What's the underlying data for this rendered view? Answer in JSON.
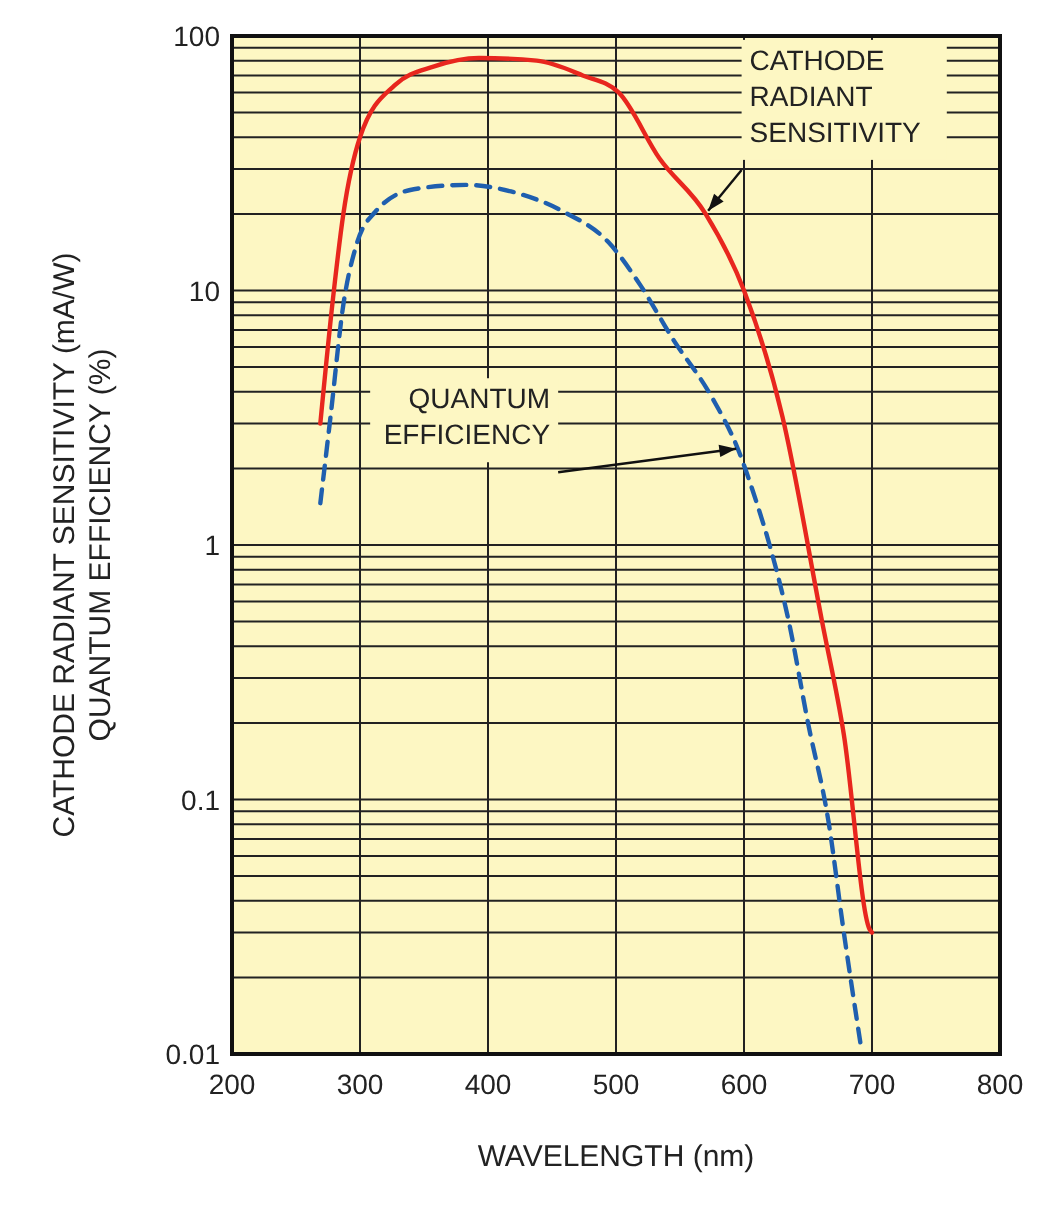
{
  "chart_data": {
    "type": "line",
    "xlabel": "WAVELENGTH (nm)",
    "ylabel": "CATHODE RADIANT SENSITIVITY (mA/W)\nQUANTUM EFFICIENCY (%)",
    "log": "y",
    "grid": true,
    "marker": "none",
    "xlim": [
      200,
      800
    ],
    "xticks": [
      200,
      300,
      400,
      500,
      600,
      700,
      800
    ],
    "ylim": [
      0.01,
      100
    ],
    "yticks": [
      {
        "value": 0.01,
        "label": "0.01"
      },
      {
        "value": 0.02,
        "label": null
      },
      {
        "value": 0.03,
        "label": null
      },
      {
        "value": 0.04,
        "label": null
      },
      {
        "value": 0.05,
        "label": null
      },
      {
        "value": 0.06,
        "label": null
      },
      {
        "value": 0.07,
        "label": null
      },
      {
        "value": 0.08,
        "label": null
      },
      {
        "value": 0.09,
        "label": null
      },
      {
        "value": 0.1,
        "label": "0.1"
      },
      {
        "value": 0.2,
        "label": null
      },
      {
        "value": 0.3,
        "label": null
      },
      {
        "value": 0.4,
        "label": null
      },
      {
        "value": 0.5,
        "label": null
      },
      {
        "value": 0.6,
        "label": null
      },
      {
        "value": 0.7,
        "label": null
      },
      {
        "value": 0.8,
        "label": null
      },
      {
        "value": 0.9,
        "label": null
      },
      {
        "value": 1,
        "label": "1"
      },
      {
        "value": 2,
        "label": null
      },
      {
        "value": 3,
        "label": null
      },
      {
        "value": 4,
        "label": null
      },
      {
        "value": 5,
        "label": null
      },
      {
        "value": 6,
        "label": null
      },
      {
        "value": 7,
        "label": null
      },
      {
        "value": 8,
        "label": null
      },
      {
        "value": 9,
        "label": null
      },
      {
        "value": 10,
        "label": "10"
      },
      {
        "value": 20,
        "label": null
      },
      {
        "value": 30,
        "label": null
      },
      {
        "value": 40,
        "label": null
      },
      {
        "value": 50,
        "label": null
      },
      {
        "value": 60,
        "label": null
      },
      {
        "value": 70,
        "label": null
      },
      {
        "value": 80,
        "label": null
      },
      {
        "value": 90,
        "label": null
      },
      {
        "value": 100,
        "label": "100"
      }
    ],
    "series": [
      {
        "color": "#e8261e",
        "line_style": "solid",
        "x": [
          269,
          279,
          287,
          300,
          327,
          358,
          393,
          438,
          474,
          502,
          534,
          570,
          600,
          630,
          661,
          678,
          698,
          700
        ],
        "values": [
          3.0,
          9.4,
          20,
          40,
          64,
          76,
          82,
          80,
          70,
          60,
          33,
          20,
          10,
          3.2,
          0.5,
          0.18,
          0.031,
          0.03
        ]
      },
      {
        "color": "#1f5faf",
        "line_style": "dashed",
        "x": [
          269,
          277,
          287,
          297,
          312,
          342,
          383,
          418,
          459,
          494,
          519,
          544,
          575,
          595,
          610,
          620,
          635,
          650,
          666,
          678,
          691
        ],
        "values": [
          1.46,
          3.2,
          8.8,
          15,
          20.4,
          25,
          26,
          24.5,
          20.4,
          15.5,
          10.5,
          6.5,
          3.8,
          2.4,
          1.46,
          1.0,
          0.5,
          0.2,
          0.082,
          0.03,
          0.011
        ]
      }
    ],
    "annotations": [
      {
        "text": "CATHODE\nRADIANT\nSENSITIVITY",
        "x": 570,
        "y": 20
      },
      {
        "text": "QUANTUM\nEFFICIENCY",
        "x": 597,
        "y": 2.4
      }
    ]
  }
}
